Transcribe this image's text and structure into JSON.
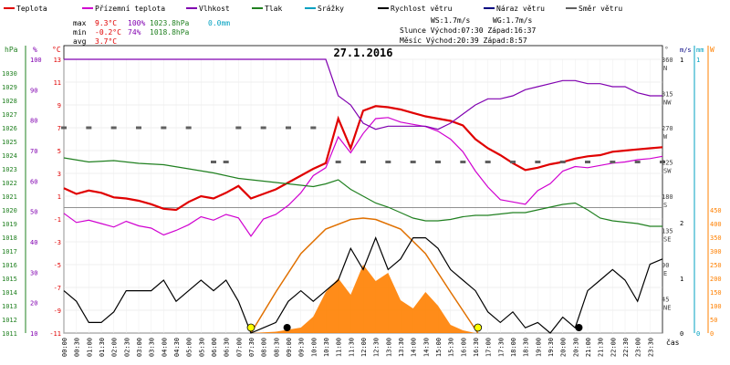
{
  "chart_data": {
    "type": "line",
    "title": "27.1.2016",
    "legend": [
      {
        "name": "Teplota",
        "color": "#e00000"
      },
      {
        "name": "Přízemní teplota",
        "color": "#d000d0"
      },
      {
        "name": "Vlhkost",
        "color": "#8000b0"
      },
      {
        "name": "Tlak",
        "color": "#208020"
      },
      {
        "name": "Srážky",
        "color": "#00a0c0"
      },
      {
        "name": "Rychlost větru",
        "color": "#000000"
      },
      {
        "name": "Náraz větru",
        "color": "#000080"
      },
      {
        "name": "Směr větru",
        "color": "#606060"
      }
    ],
    "stats": {
      "max_label": "max",
      "max_temp": "9.3°C",
      "max_hum": "100%",
      "max_press": "1023.8hPa",
      "max_rain": "0.0mm",
      "min_label": "min",
      "min_temp": "-0.2°C",
      "min_hum": "74%",
      "min_press": "1018.8hPa",
      "avg_label": "avg",
      "avg_temp": "3.7°C",
      "ws": "WS:1.7m/s",
      "wg": "WG:1.7m/s",
      "sun": "Slunce Východ:07:30  Západ:16:37",
      "moon": "Měsíc  Východ:20:39  Západ:8:57"
    },
    "axes": {
      "hpa_unit": "hPa",
      "pct_unit": "%",
      "degc_unit": "°C",
      "deg_unit": "°",
      "ms_unit": "m/s",
      "mm_unit": "mm",
      "w_unit": "W",
      "hpa_ticks": [
        "1030",
        "1029",
        "1028",
        "1027",
        "1026",
        "1025",
        "1024",
        "1023",
        "1022",
        "1021",
        "1020",
        "1019",
        "1018",
        "1017",
        "1016",
        "1015",
        "1014",
        "1013",
        "1012",
        "1011"
      ],
      "pct_ticks": [
        "100",
        "90",
        "80",
        "70",
        "60",
        "50",
        "40",
        "30",
        "20",
        "10"
      ],
      "degc_ticks": [
        "13",
        "11",
        "9",
        "7",
        "5",
        "3",
        "1",
        "-1",
        "-3",
        "-5",
        "-7",
        "-9",
        "-11"
      ],
      "dir_ticks": [
        "360",
        "315",
        "270",
        "225",
        "180",
        "135",
        "90",
        "45"
      ],
      "dir_labels": [
        "N",
        "NW",
        "W",
        "SW",
        "S",
        "SE",
        "E",
        "NE"
      ],
      "ms_ticks": [
        "1",
        "2",
        "1",
        "0"
      ],
      "mm_ticks": [
        "1",
        "0"
      ],
      "w_ticks": [
        "450",
        "400",
        "350",
        "300",
        "250",
        "200",
        "150",
        "100",
        "50",
        "0"
      ],
      "x_label": "čas"
    },
    "x_ticks": [
      "00:00",
      "00:30",
      "01:00",
      "01:30",
      "02:00",
      "02:30",
      "03:00",
      "03:30",
      "04:00",
      "04:30",
      "05:00",
      "05:30",
      "06:00",
      "06:30",
      "07:00",
      "07:30",
      "08:00",
      "08:30",
      "09:00",
      "09:30",
      "10:00",
      "10:30",
      "11:00",
      "11:30",
      "12:00",
      "12:30",
      "13:00",
      "13:30",
      "14:00",
      "14:30",
      "15:00",
      "15:30",
      "16:00",
      "16:30",
      "17:00",
      "17:30",
      "18:00",
      "18:30",
      "19:00",
      "19:30",
      "20:00",
      "20:30",
      "21:00",
      "21:30",
      "22:00",
      "22:30",
      "23:00",
      "23:30"
    ],
    "series": [
      {
        "name": "Teplota",
        "color": "#e00000",
        "unit": "°C",
        "x": [
          0,
          0.5,
          1,
          1.5,
          2,
          2.5,
          3,
          3.5,
          4,
          4.5,
          5,
          5.5,
          6,
          6.5,
          7,
          7.5,
          8,
          8.5,
          9,
          9.5,
          10,
          10.5,
          11,
          11.5,
          12,
          12.5,
          13,
          13.5,
          14,
          14.5,
          15,
          15.5,
          16,
          16.5,
          17,
          17.5,
          18,
          18.5,
          19,
          19.5,
          20,
          20.5,
          21,
          21.5,
          22,
          22.5,
          23,
          23.5,
          24
        ],
        "y": [
          1.7,
          1.2,
          1.5,
          1.3,
          0.9,
          0.8,
          0.6,
          0.3,
          -0.1,
          -0.2,
          0.5,
          1.0,
          0.8,
          1.3,
          1.9,
          0.8,
          1.2,
          1.6,
          2.2,
          2.8,
          3.4,
          3.9,
          7.8,
          5.2,
          8.5,
          8.9,
          8.8,
          8.6,
          8.3,
          8.0,
          7.8,
          7.6,
          7.2,
          6.0,
          5.2,
          4.6,
          3.9,
          3.3,
          3.5,
          3.8,
          4.0,
          4.3,
          4.5,
          4.6,
          4.9,
          5.0,
          5.1,
          5.2,
          5.3
        ]
      },
      {
        "name": "Přízemní teplota",
        "color": "#d000d0",
        "unit": "°C",
        "x": [
          0,
          0.5,
          1,
          1.5,
          2,
          2.5,
          3,
          3.5,
          4,
          4.5,
          5,
          5.5,
          6,
          6.5,
          7,
          7.5,
          8,
          8.5,
          9,
          9.5,
          10,
          10.5,
          11,
          11.5,
          12,
          12.5,
          13,
          13.5,
          14,
          14.5,
          15,
          15.5,
          16,
          16.5,
          17,
          17.5,
          18,
          18.5,
          19,
          19.5,
          20,
          20.5,
          21,
          21.5,
          22,
          22.5,
          23,
          23.5,
          24
        ],
        "y": [
          -0.5,
          -1.3,
          -1.1,
          -1.4,
          -1.7,
          -1.2,
          -1.6,
          -1.8,
          -2.4,
          -2.0,
          -1.5,
          -0.8,
          -1.1,
          -0.6,
          -0.9,
          -2.5,
          -1.0,
          -0.6,
          0.2,
          1.3,
          2.8,
          3.5,
          6.2,
          4.8,
          6.5,
          7.8,
          7.9,
          7.5,
          7.3,
          7.1,
          6.7,
          6.0,
          4.9,
          3.2,
          1.8,
          0.7,
          0.5,
          0.3,
          1.5,
          2.1,
          3.2,
          3.6,
          3.5,
          3.7,
          3.9,
          4.0,
          4.2,
          4.3,
          4.5
        ]
      },
      {
        "name": "Vlhkost",
        "color": "#8000b0",
        "unit": "%",
        "x": [
          0,
          1,
          2,
          3,
          4,
          5,
          6,
          7,
          8,
          9,
          10,
          10.5,
          11,
          11.5,
          12,
          12.5,
          13,
          13.5,
          14,
          14.5,
          15,
          15.5,
          16,
          16.5,
          17,
          17.5,
          18,
          18.5,
          19,
          19.5,
          20,
          20.5,
          21,
          21.5,
          22,
          22.5,
          23,
          23.5,
          24
        ],
        "y": [
          100,
          100,
          100,
          100,
          100,
          100,
          100,
          100,
          100,
          100,
          100,
          100,
          88,
          85,
          79,
          77,
          78,
          78,
          78,
          78,
          77,
          79,
          82,
          85,
          87,
          87,
          88,
          90,
          91,
          92,
          93,
          93,
          92,
          92,
          91,
          91,
          89,
          88,
          88
        ]
      },
      {
        "name": "Tlak",
        "color": "#208020",
        "unit": "hPa",
        "x": [
          0,
          1,
          2,
          3,
          4,
          5,
          6,
          7,
          8,
          9,
          10,
          10.5,
          11,
          11.5,
          12,
          12.5,
          13,
          13.5,
          14,
          14.5,
          15,
          15.5,
          16,
          16.5,
          17,
          17.5,
          18,
          18.5,
          19,
          19.5,
          20,
          20.5,
          21,
          21.5,
          22,
          22.5,
          23,
          23.5,
          24
        ],
        "y": [
          1023.8,
          1023.5,
          1023.6,
          1023.4,
          1023.3,
          1023.0,
          1022.7,
          1022.3,
          1022.1,
          1021.9,
          1021.7,
          1021.9,
          1022.2,
          1021.5,
          1021.0,
          1020.5,
          1020.2,
          1019.8,
          1019.4,
          1019.2,
          1019.2,
          1019.3,
          1019.5,
          1019.6,
          1019.6,
          1019.7,
          1019.8,
          1019.8,
          1020.0,
          1020.2,
          1020.4,
          1020.5,
          1020.0,
          1019.4,
          1019.2,
          1019.1,
          1019.0,
          1018.8,
          1018.8
        ]
      },
      {
        "name": "Rychlost větru",
        "color": "#000000",
        "unit": "m/s",
        "x": [
          0,
          0.5,
          1,
          1.5,
          2,
          2.5,
          3,
          3.5,
          4,
          4.5,
          5,
          5.5,
          6,
          6.5,
          7,
          7.5,
          8,
          8.5,
          9,
          9.5,
          10,
          10.5,
          11,
          11.5,
          12,
          12.5,
          13,
          13.5,
          14,
          14.5,
          15,
          15.5,
          16,
          16.5,
          17,
          17.5,
          18,
          18.5,
          19,
          19.5,
          20,
          20.5,
          21,
          21.5,
          22,
          22.5,
          23,
          23.5,
          24
        ],
        "y": [
          0.8,
          0.6,
          0.2,
          0.2,
          0.4,
          0.8,
          0.8,
          0.8,
          1.0,
          0.6,
          0.8,
          1.0,
          0.8,
          1.0,
          0.6,
          0.0,
          0.1,
          0.2,
          0.6,
          0.8,
          0.6,
          0.8,
          1.0,
          1.6,
          1.2,
          1.8,
          1.2,
          1.4,
          1.8,
          1.8,
          1.6,
          1.2,
          1.0,
          0.8,
          0.4,
          0.2,
          0.4,
          0.1,
          0.2,
          0.0,
          0.3,
          0.1,
          0.8,
          1.0,
          1.2,
          1.0,
          0.6,
          1.3,
          1.4
        ]
      }
    ],
    "solar_radiation": {
      "name": "Sluneční záření",
      "color": "#ff8000",
      "unit": "W",
      "x": [
        7.5,
        8.5,
        9.5,
        10,
        10.5,
        11,
        11.5,
        12,
        12.5,
        13,
        13.5,
        14,
        14.5,
        15,
        15.5,
        16,
        16.5
      ],
      "y": [
        0,
        5,
        20,
        60,
        150,
        200,
        140,
        250,
        190,
        220,
        120,
        90,
        150,
        100,
        30,
        10,
        0
      ]
    },
    "theoretical_radiation": {
      "color": "#e07000",
      "x": [
        7.5,
        8.5,
        9.5,
        10.5,
        11.5,
        12,
        12.5,
        13.5,
        14.5,
        15.5,
        16.6
      ],
      "y": [
        0,
        150,
        290,
        380,
        415,
        420,
        415,
        380,
        290,
        150,
        0
      ]
    },
    "wind_direction": {
      "name": "Směr větru",
      "color": "#606060",
      "unit": "°",
      "x": [
        0,
        1,
        2,
        3,
        4,
        5,
        6,
        6.5,
        7,
        8,
        9,
        10,
        11,
        12,
        13,
        14,
        15,
        16,
        17,
        18,
        19,
        20,
        21,
        22,
        23,
        24
      ],
      "y": [
        270,
        270,
        270,
        270,
        270,
        270,
        225,
        225,
        270,
        270,
        270,
        270,
        225,
        225,
        225,
        225,
        225,
        225,
        225,
        225,
        225,
        225,
        225,
        225,
        225,
        225
      ]
    },
    "markers": {
      "sunrise": 7.5,
      "sunset": 16.6,
      "moonset": 8.95,
      "moonrise": 20.65
    }
  }
}
